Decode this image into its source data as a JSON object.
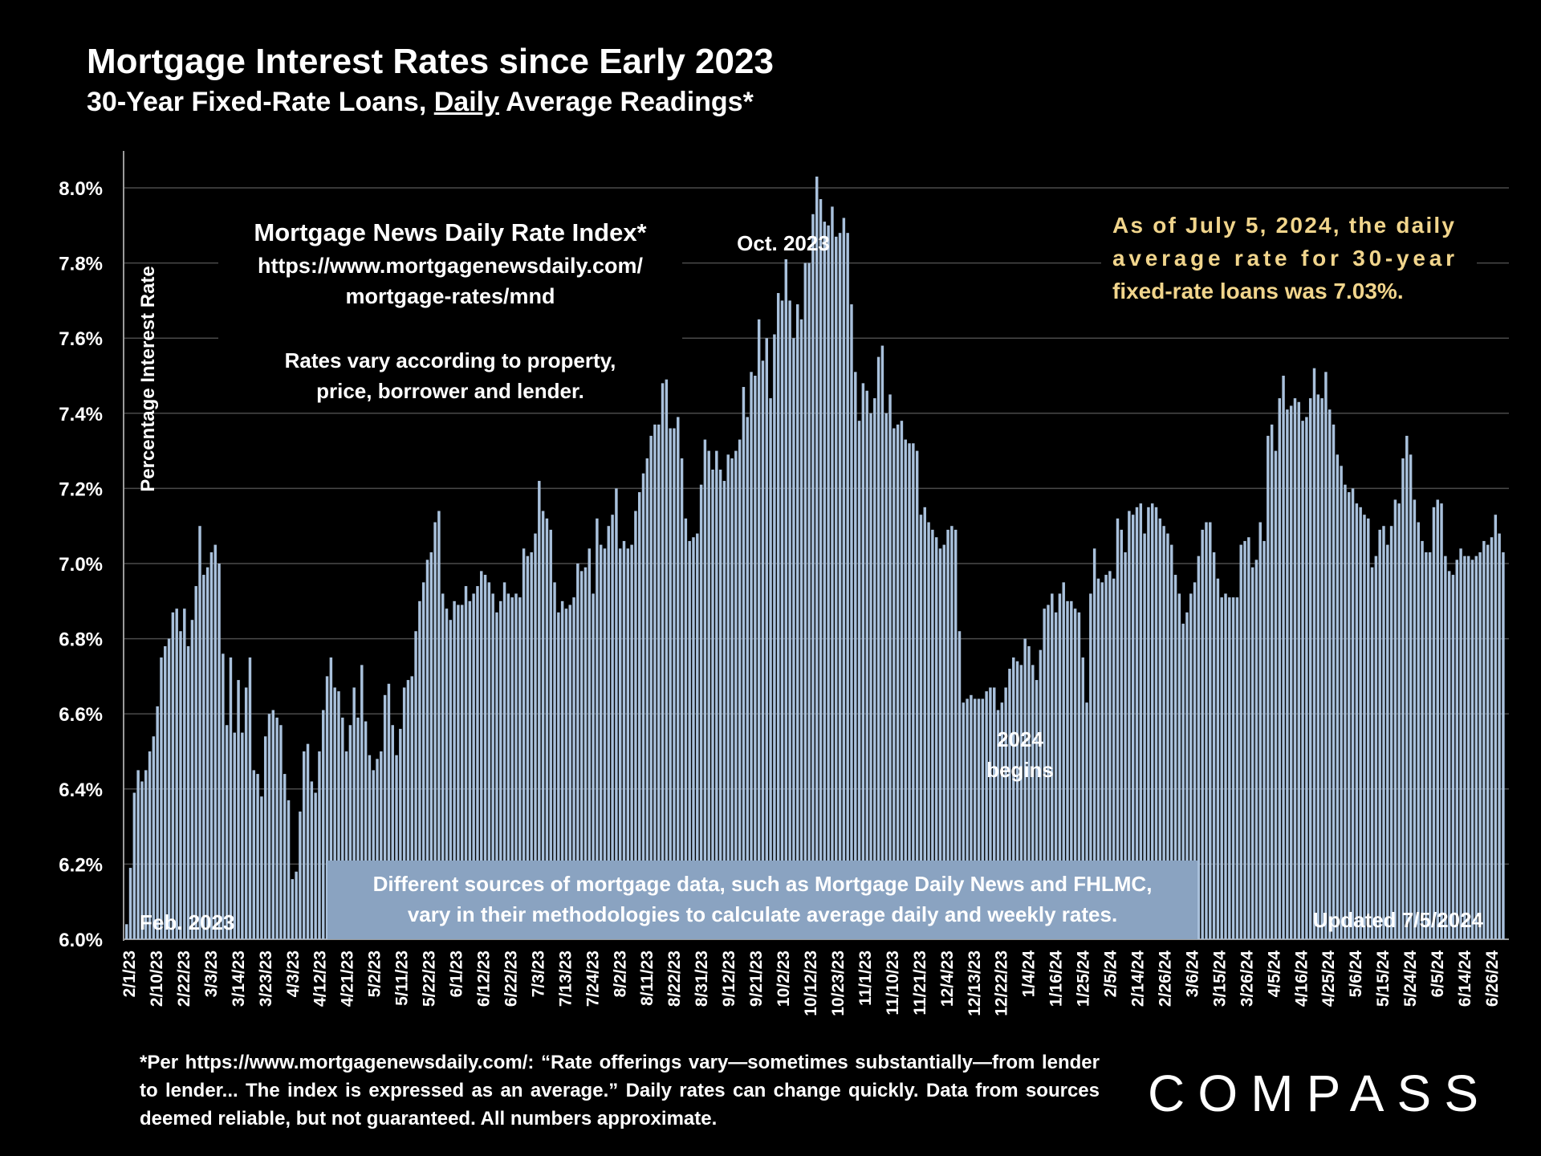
{
  "header": {
    "title": "Mortgage Interest Rates since Early 2023",
    "subtitle_pre": "30-Year Fixed-Rate Loans, ",
    "subtitle_u": "Daily",
    "subtitle_post": " Average Readings*"
  },
  "annotations": {
    "source_title": "Mortgage News Daily Rate Index*",
    "source_url_1": "https://www.mortgagenewsdaily.com/",
    "source_url_2": "mortgage-rates/mnd",
    "vary_1": "Rates vary according to property,",
    "vary_2": "price, borrower and lender.",
    "oct_label": "Oct. 2023",
    "asof_1": "As of July 5, 2024, the daily",
    "asof_2": "average rate for 30-year",
    "asof_3": "fixed-rate loans was 7.03%.",
    "begins_1": "2024",
    "begins_2": "begins",
    "feb_label": "Feb. 2023",
    "updated_label": "Updated 7/5/2024",
    "sources_1": "Different sources of mortgage data, such as Mortgage Daily News and FHLMC,",
    "sources_2": "vary in their methodologies to calculate average daily and weekly rates."
  },
  "footnote": "*Per https://www.mortgagenewsdaily.com/: “Rate offerings vary—sometimes substantially—from lender to lender... The index is expressed as an average.” Daily rates can change quickly. Data from sources deemed reliable, but not guaranteed. All numbers approximate.",
  "logo": {
    "text": "COMPASS"
  },
  "colors": {
    "bar": "#a9c1dc",
    "bar_edge": "#7f9bbf",
    "highlight": "#f1d58c",
    "box": "#8aa3c1",
    "grid": "#4a4a4a"
  },
  "chart_data": {
    "type": "bar",
    "ylabel": "Percentage Interest  Rate",
    "ylim": [
      6.0,
      8.1
    ],
    "yticks": [
      "6.0%",
      "6.2%",
      "6.4%",
      "6.6%",
      "6.8%",
      "7.0%",
      "7.2%",
      "7.4%",
      "7.6%",
      "7.8%",
      "8.0%"
    ],
    "grid": true,
    "xtick_labels": [
      "2/1/23",
      "2/10/23",
      "2/22/23",
      "3/3/23",
      "3/14/23",
      "3/23/23",
      "4/3/23",
      "4/12/23",
      "4/21/23",
      "5/2/23",
      "5/11/23",
      "5/22/23",
      "6/1/23",
      "6/12/23",
      "6/22/23",
      "7/3/23",
      "7/13/23",
      "7/24/23",
      "8/2/23",
      "8/11/23",
      "8/22/23",
      "8/31/23",
      "9/12/23",
      "9/21/23",
      "10/2/23",
      "10/12/23",
      "10/23/23",
      "11/1/23",
      "11/10/23",
      "11/21/23",
      "12/4/23",
      "12/13/23",
      "12/22/23",
      "1/4/24",
      "1/16/24",
      "1/25/24",
      "2/5/24",
      "2/14/24",
      "2/26/24",
      "3/6/24",
      "3/15/24",
      "3/26/24",
      "4/5/24",
      "4/16/24",
      "4/25/24",
      "5/6/24",
      "5/15/24",
      "5/24/24",
      "6/5/24",
      "6/14/24",
      "6/26/24"
    ],
    "values": [
      6.04,
      6.19,
      6.39,
      6.45,
      6.42,
      6.45,
      6.5,
      6.54,
      6.62,
      6.75,
      6.78,
      6.8,
      6.87,
      6.88,
      6.82,
      6.88,
      6.78,
      6.85,
      6.94,
      7.1,
      6.97,
      6.99,
      7.03,
      7.05,
      7.0,
      6.76,
      6.57,
      6.75,
      6.55,
      6.69,
      6.55,
      6.67,
      6.75,
      6.45,
      6.44,
      6.38,
      6.54,
      6.6,
      6.61,
      6.59,
      6.57,
      6.44,
      6.37,
      6.16,
      6.18,
      6.34,
      6.5,
      6.52,
      6.42,
      6.39,
      6.5,
      6.61,
      6.7,
      6.75,
      6.67,
      6.66,
      6.59,
      6.5,
      6.57,
      6.67,
      6.59,
      6.73,
      6.58,
      6.49,
      6.45,
      6.48,
      6.5,
      6.65,
      6.68,
      6.57,
      6.49,
      6.56,
      6.67,
      6.69,
      6.7,
      6.82,
      6.9,
      6.95,
      7.01,
      7.03,
      7.11,
      7.14,
      6.92,
      6.88,
      6.85,
      6.9,
      6.89,
      6.89,
      6.94,
      6.9,
      6.92,
      6.94,
      6.98,
      6.97,
      6.95,
      6.92,
      6.87,
      6.9,
      6.95,
      6.92,
      6.91,
      6.92,
      6.91,
      7.04,
      7.02,
      7.03,
      7.08,
      7.22,
      7.14,
      7.12,
      7.09,
      6.95,
      6.87,
      6.9,
      6.88,
      6.89,
      6.91,
      7.0,
      6.98,
      6.99,
      7.04,
      6.92,
      7.12,
      7.05,
      7.04,
      7.1,
      7.13,
      7.2,
      7.04,
      7.06,
      7.04,
      7.05,
      7.14,
      7.19,
      7.24,
      7.28,
      7.34,
      7.37,
      7.37,
      7.48,
      7.49,
      7.36,
      7.36,
      7.39,
      7.28,
      7.12,
      7.06,
      7.07,
      7.08,
      7.21,
      7.33,
      7.3,
      7.25,
      7.3,
      7.25,
      7.22,
      7.29,
      7.28,
      7.3,
      7.33,
      7.47,
      7.39,
      7.51,
      7.5,
      7.65,
      7.54,
      7.6,
      7.44,
      7.61,
      7.72,
      7.7,
      7.81,
      7.7,
      7.6,
      7.69,
      7.65,
      7.8,
      7.8,
      7.93,
      8.03,
      7.97,
      7.91,
      7.9,
      7.95,
      7.87,
      7.88,
      7.92,
      7.88,
      7.69,
      7.51,
      7.38,
      7.48,
      7.46,
      7.4,
      7.44,
      7.55,
      7.58,
      7.4,
      7.45,
      7.36,
      7.37,
      7.38,
      7.33,
      7.32,
      7.32,
      7.3,
      7.13,
      7.15,
      7.11,
      7.09,
      7.07,
      7.04,
      7.05,
      7.09,
      7.1,
      7.09,
      6.82,
      6.63,
      6.64,
      6.65,
      6.64,
      6.64,
      6.64,
      6.66,
      6.67,
      6.67,
      6.61,
      6.63,
      6.67,
      6.72,
      6.75,
      6.74,
      6.73,
      6.8,
      6.78,
      6.73,
      6.69,
      6.77,
      6.88,
      6.89,
      6.92,
      6.87,
      6.92,
      6.95,
      6.9,
      6.9,
      6.88,
      6.87,
      6.75,
      6.63,
      6.92,
      7.04,
      6.96,
      6.95,
      6.97,
      6.98,
      6.96,
      7.12,
      7.09,
      7.03,
      7.14,
      7.13,
      7.15,
      7.16,
      7.08,
      7.15,
      7.16,
      7.15,
      7.12,
      7.1,
      7.08,
      7.05,
      6.97,
      6.92,
      6.84,
      6.87,
      6.92,
      6.95,
      7.02,
      7.09,
      7.11,
      7.11,
      7.03,
      6.96,
      6.91,
      6.92,
      6.91,
      6.91,
      6.91,
      7.05,
      7.06,
      7.07,
      6.99,
      7.01,
      7.11,
      7.06,
      7.34,
      7.37,
      7.3,
      7.44,
      7.5,
      7.41,
      7.42,
      7.44,
      7.43,
      7.38,
      7.39,
      7.44,
      7.52,
      7.45,
      7.44,
      7.51,
      7.41,
      7.37,
      7.29,
      7.26,
      7.21,
      7.19,
      7.2,
      7.16,
      7.15,
      7.13,
      7.12,
      6.99,
      7.02,
      7.09,
      7.1,
      7.05,
      7.1,
      7.17,
      7.16,
      7.28,
      7.34,
      7.29,
      7.17,
      7.11,
      7.06,
      7.03,
      7.03,
      7.15,
      7.17,
      7.16,
      7.02,
      6.98,
      6.97,
      7.01,
      7.04,
      7.02,
      7.02,
      7.01,
      7.02,
      7.03,
      7.06,
      7.05,
      7.07,
      7.13,
      7.08,
      7.03
    ]
  }
}
